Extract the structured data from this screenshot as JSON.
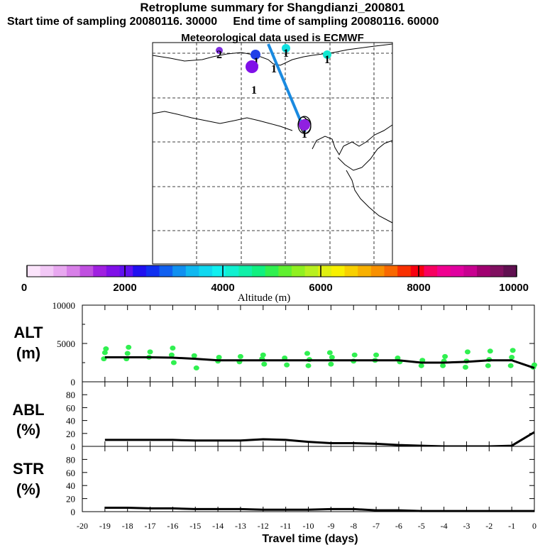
{
  "titles": {
    "title": "Retroplume summary for Shangdianzi_200801",
    "start_label": "Start time of sampling",
    "start_value": "20080116. 30000",
    "end_label": "End time of sampling",
    "end_value": "20080116. 60000",
    "met": "Meteorological data used is ECMWF"
  },
  "colorbar": {
    "label": "Altitude (m)",
    "ticks": [
      0,
      2000,
      4000,
      6000,
      8000,
      10000
    ],
    "colors": [
      "#fbe4fb",
      "#f2c8f6",
      "#e8a8f0",
      "#d880e8",
      "#c050e0",
      "#a020e0",
      "#8010e8",
      "#6010f0",
      "#2010f0",
      "#1030f0",
      "#1060f0",
      "#1090f0",
      "#10b8f0",
      "#10d8f0",
      "#10f0f0",
      "#10f0d0",
      "#10f0a8",
      "#10f080",
      "#30f050",
      "#60f030",
      "#90f020",
      "#b8f020",
      "#e0f010",
      "#f8f000",
      "#f8d000",
      "#f8b000",
      "#f89000",
      "#f86800",
      "#f83000",
      "#f80010",
      "#f80060",
      "#f00090",
      "#e000a0",
      "#c80090",
      "#a00070",
      "#801060",
      "#601050"
    ]
  },
  "chart_data": [
    {
      "type": "scatter",
      "panel": "ALT",
      "title": "ALT",
      "ylabel": "(m)",
      "ylim": [
        0,
        10000
      ],
      "yticks": [
        0,
        5000,
        10000
      ],
      "xlim": [
        -20,
        0
      ],
      "series": [
        {
          "name": "median altitude",
          "x": [
            -19,
            -18,
            -17,
            -16,
            -15,
            -14,
            -13,
            -12,
            -11,
            -10,
            -9,
            -8,
            -7,
            -6,
            -5,
            -4,
            -3,
            -2,
            -1,
            0
          ],
          "values": [
            3200,
            3200,
            3200,
            3150,
            3000,
            2800,
            2800,
            2800,
            2800,
            2800,
            2800,
            2800,
            2800,
            2800,
            2500,
            2500,
            2600,
            2800,
            2800,
            1800
          ]
        },
        {
          "name": "particle altitudes",
          "points": [
            [
              -19,
              3000
            ],
            [
              -19,
              3800
            ],
            [
              -19,
              4300
            ],
            [
              -18,
              3000
            ],
            [
              -18,
              3700
            ],
            [
              -18,
              4500
            ],
            [
              -17,
              3200
            ],
            [
              -17,
              3900
            ],
            [
              -16,
              2500
            ],
            [
              -16,
              3500
            ],
            [
              -16,
              4400
            ],
            [
              -15,
              1800
            ],
            [
              -15,
              3400
            ],
            [
              -14,
              2700
            ],
            [
              -14,
              3200
            ],
            [
              -13,
              2600
            ],
            [
              -13,
              3300
            ],
            [
              -12,
              2300
            ],
            [
              -12,
              3000
            ],
            [
              -12,
              3500
            ],
            [
              -11,
              2200
            ],
            [
              -11,
              3100
            ],
            [
              -10,
              2100
            ],
            [
              -10,
              2900
            ],
            [
              -10,
              3700
            ],
            [
              -9,
              2300
            ],
            [
              -9,
              3200
            ],
            [
              -9,
              3800
            ],
            [
              -8,
              2700
            ],
            [
              -8,
              3500
            ],
            [
              -7,
              2800
            ],
            [
              -7,
              3500
            ],
            [
              -6,
              2600
            ],
            [
              -6,
              3100
            ],
            [
              -5,
              2100
            ],
            [
              -5,
              2800
            ],
            [
              -4,
              2100
            ],
            [
              -4,
              2700
            ],
            [
              -4,
              3300
            ],
            [
              -3,
              1900
            ],
            [
              -3,
              2700
            ],
            [
              -3,
              3900
            ],
            [
              -2,
              2100
            ],
            [
              -2,
              2900
            ],
            [
              -2,
              4000
            ],
            [
              -1,
              2100
            ],
            [
              -1,
              3200
            ],
            [
              -1,
              4100
            ],
            [
              0,
              1900
            ],
            [
              0,
              2200
            ]
          ]
        }
      ]
    },
    {
      "type": "line",
      "panel": "ABL",
      "title": "ABL",
      "ylabel": "(%)",
      "ylim": [
        0,
        100
      ],
      "yticks": [
        0,
        20,
        40,
        60,
        80
      ],
      "xlim": [
        -20,
        0
      ],
      "series": [
        {
          "name": "ABL fraction",
          "x": [
            -19,
            -18,
            -17,
            -16,
            -15,
            -14,
            -13,
            -12,
            -11,
            -10,
            -9,
            -8,
            -7,
            -6,
            -5,
            -4,
            -3,
            -2,
            -1,
            0
          ],
          "values": [
            10,
            10,
            10,
            10,
            9,
            9,
            9,
            11,
            10,
            7,
            5,
            5,
            4,
            2,
            1,
            0,
            0,
            0,
            1,
            22
          ]
        }
      ]
    },
    {
      "type": "line",
      "panel": "STR",
      "title": "STR",
      "ylabel": "(%)",
      "ylim": [
        0,
        100
      ],
      "yticks": [
        0,
        20,
        40,
        60,
        80
      ],
      "xlim": [
        -20,
        0
      ],
      "xlabel": "Travel time (days)",
      "xticks": [
        -20,
        -19,
        -18,
        -17,
        -16,
        -15,
        -14,
        -13,
        -12,
        -11,
        -10,
        -9,
        -8,
        -7,
        -6,
        -5,
        -4,
        -3,
        -2,
        -1,
        0
      ],
      "series": [
        {
          "name": "stratospheric fraction",
          "x": [
            -19,
            -18,
            -17,
            -16,
            -15,
            -14,
            -13,
            -12,
            -11,
            -10,
            -9,
            -8,
            -7,
            -6,
            -5,
            -4,
            -3,
            -2,
            -1,
            0
          ],
          "values": [
            6,
            6,
            5,
            5,
            4,
            4,
            4,
            3,
            3,
            3,
            4,
            4,
            2,
            2,
            1,
            1,
            1,
            1,
            1,
            1
          ]
        }
      ]
    }
  ],
  "map": {
    "clusters": [
      {
        "label": "1",
        "color": "#2040e8"
      },
      {
        "label": "1",
        "color": "#10e0e0"
      },
      {
        "label": "1",
        "color": "#10e8d0"
      },
      {
        "label": "1",
        "color": "#8010e8"
      },
      {
        "label": "1",
        "color": "#9020e0"
      },
      {
        "label": "2",
        "color": "#8030e0"
      },
      {
        "label": "1",
        "color": "#6010f0"
      }
    ],
    "track_color": "#1a8ae0"
  }
}
